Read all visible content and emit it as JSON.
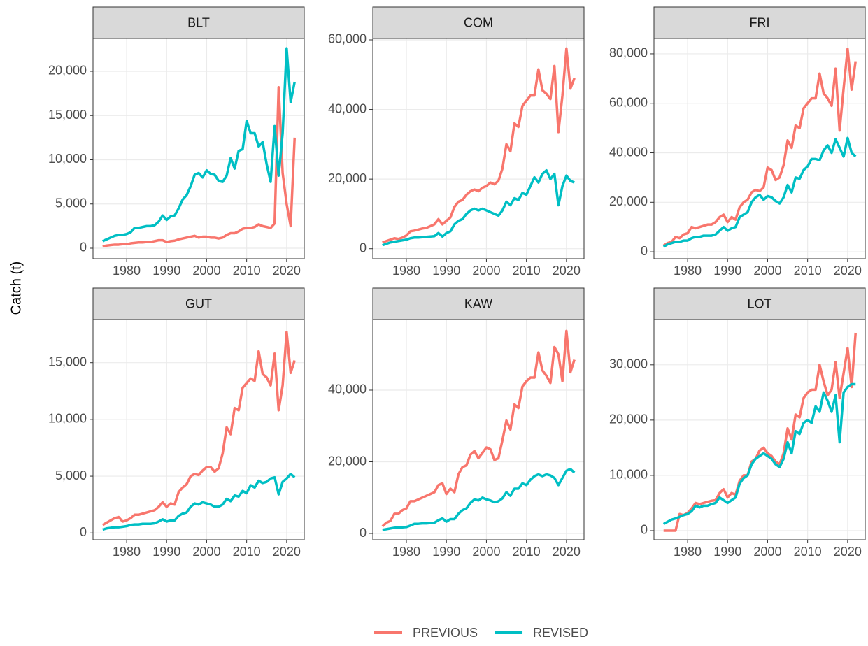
{
  "ylabel": "Catch (t)",
  "chart_data": [
    {
      "type": "line",
      "title": "BLT",
      "x": [
        1974,
        1975,
        1976,
        1977,
        1978,
        1979,
        1980,
        1981,
        1982,
        1983,
        1984,
        1985,
        1986,
        1987,
        1988,
        1989,
        1990,
        1991,
        1992,
        1993,
        1994,
        1995,
        1996,
        1997,
        1998,
        1999,
        2000,
        2001,
        2002,
        2003,
        2004,
        2005,
        2006,
        2007,
        2008,
        2009,
        2010,
        2011,
        2012,
        2013,
        2014,
        2015,
        2016,
        2017,
        2018,
        2019,
        2020,
        2021,
        2022
      ],
      "series": [
        {
          "name": "PREVIOUS",
          "color": "#F8766D",
          "values": [
            200,
            300,
            350,
            400,
            400,
            450,
            450,
            550,
            600,
            650,
            650,
            700,
            700,
            800,
            900,
            900,
            700,
            800,
            850,
            1000,
            1100,
            1200,
            1300,
            1400,
            1200,
            1300,
            1300,
            1200,
            1200,
            1100,
            1200,
            1500,
            1700,
            1700,
            1900,
            2200,
            2300,
            2300,
            2400,
            2700,
            2500,
            2400,
            2300,
            2800,
            18200,
            8500,
            5000,
            2500,
            12500
          ]
        },
        {
          "name": "REVISED",
          "color": "#00BFC4",
          "values": [
            800,
            1000,
            1200,
            1400,
            1500,
            1500,
            1600,
            1800,
            2300,
            2300,
            2400,
            2500,
            2500,
            2600,
            3000,
            3700,
            3200,
            3600,
            3700,
            4500,
            5500,
            6000,
            7000,
            8300,
            8500,
            8000,
            8800,
            8400,
            8300,
            7600,
            7500,
            8200,
            10200,
            9000,
            11000,
            11200,
            14400,
            13000,
            13000,
            11500,
            12000,
            9500,
            7500,
            13800,
            8200,
            13000,
            22600,
            16500,
            18800
          ]
        }
      ],
      "xlim": [
        1971.6,
        2024.4
      ],
      "xticks": [
        1980,
        1990,
        2000,
        2010,
        2020
      ],
      "ylim": [
        -1186,
        23715
      ],
      "yticks": [
        0,
        {
          "value": 5000,
          "label": "5,000"
        },
        {
          "value": 10000,
          "label": "10,000"
        },
        {
          "value": 15000,
          "label": "15,000"
        },
        {
          "value": 20000,
          "label": "20,000"
        }
      ],
      "grid": true
    },
    {
      "type": "line",
      "title": "COM",
      "x": [
        1974,
        1975,
        1976,
        1977,
        1978,
        1979,
        1980,
        1981,
        1982,
        1983,
        1984,
        1985,
        1986,
        1987,
        1988,
        1989,
        1990,
        1991,
        1992,
        1993,
        1994,
        1995,
        1996,
        1997,
        1998,
        1999,
        2000,
        2001,
        2002,
        2003,
        2004,
        2005,
        2006,
        2007,
        2008,
        2009,
        2010,
        2011,
        2012,
        2013,
        2014,
        2015,
        2016,
        2017,
        2018,
        2019,
        2020,
        2021,
        2022
      ],
      "series": [
        {
          "name": "PREVIOUS",
          "color": "#F8766D",
          "values": [
            1800,
            2200,
            2600,
            3000,
            2800,
            3200,
            3800,
            5000,
            5200,
            5500,
            5800,
            6000,
            6500,
            7000,
            8500,
            7000,
            8000,
            9000,
            12000,
            13500,
            14000,
            15500,
            16500,
            17000,
            16500,
            17500,
            18000,
            19000,
            18500,
            19500,
            23000,
            30000,
            28000,
            36000,
            35000,
            41000,
            42500,
            44000,
            44000,
            51500,
            45500,
            44500,
            43000,
            52500,
            33500,
            44000,
            57500,
            46000,
            49000
          ]
        },
        {
          "name": "REVISED",
          "color": "#00BFC4",
          "values": [
            1000,
            1400,
            1800,
            2000,
            2200,
            2400,
            2600,
            3000,
            3200,
            3200,
            3300,
            3400,
            3500,
            3600,
            4500,
            3500,
            4500,
            5000,
            7000,
            8000,
            8500,
            10000,
            11000,
            11500,
            11000,
            11500,
            11000,
            10500,
            10000,
            9500,
            11000,
            13500,
            12500,
            14500,
            14000,
            16000,
            15500,
            18000,
            20500,
            19000,
            21500,
            22500,
            20000,
            21500,
            12500,
            18000,
            21000,
            19500,
            19000
          ]
        }
      ],
      "xlim": [
        1971.6,
        2024.4
      ],
      "xticks": [
        1980,
        1990,
        2000,
        2010,
        2020
      ],
      "ylim": [
        -2870,
        60400
      ],
      "yticks": [
        0,
        {
          "value": 20000,
          "label": "20,000"
        },
        {
          "value": 40000,
          "label": "40,000"
        },
        {
          "value": 60000,
          "label": "60,000"
        }
      ],
      "grid": true
    },
    {
      "type": "line",
      "title": "FRI",
      "x": [
        1974,
        1975,
        1976,
        1977,
        1978,
        1979,
        1980,
        1981,
        1982,
        1983,
        1984,
        1985,
        1986,
        1987,
        1988,
        1989,
        1990,
        1991,
        1992,
        1993,
        1994,
        1995,
        1996,
        1997,
        1998,
        1999,
        2000,
        2001,
        2002,
        2003,
        2004,
        2005,
        2006,
        2007,
        2008,
        2009,
        2010,
        2011,
        2012,
        2013,
        2014,
        2015,
        2016,
        2017,
        2018,
        2019,
        2020,
        2021,
        2022
      ],
      "series": [
        {
          "name": "PREVIOUS",
          "color": "#F8766D",
          "values": [
            2500,
            3500,
            4000,
            6000,
            5500,
            7000,
            7500,
            10000,
            9500,
            10000,
            10500,
            11000,
            11000,
            12000,
            14000,
            15000,
            12000,
            14000,
            13000,
            18000,
            20000,
            21000,
            24000,
            25000,
            24500,
            26000,
            34000,
            33000,
            29000,
            30000,
            35000,
            45000,
            42000,
            51000,
            50000,
            58000,
            60000,
            62000,
            62000,
            72000,
            64000,
            62000,
            59000,
            74000,
            49000,
            66000,
            82000,
            65500,
            77000
          ]
        },
        {
          "name": "REVISED",
          "color": "#00BFC4",
          "values": [
            2000,
            3000,
            3500,
            4000,
            4000,
            4500,
            4500,
            5500,
            6000,
            6000,
            6500,
            6500,
            6500,
            7000,
            8500,
            10000,
            8500,
            9500,
            10000,
            14000,
            15000,
            16000,
            20000,
            22000,
            23000,
            21000,
            22500,
            22000,
            20500,
            19500,
            22000,
            27000,
            24000,
            30000,
            29500,
            33000,
            34500,
            37500,
            37500,
            37000,
            41000,
            43000,
            40000,
            45500,
            42000,
            38500,
            46000,
            40000,
            38500
          ]
        }
      ],
      "xlim": [
        1971.6,
        2024.4
      ],
      "xticks": [
        1980,
        1990,
        2000,
        2010,
        2020
      ],
      "ylim": [
        -2800,
        86200
      ],
      "yticks": [
        0,
        {
          "value": 20000,
          "label": "20,000"
        },
        {
          "value": 40000,
          "label": "40,000"
        },
        {
          "value": 60000,
          "label": "60,000"
        },
        {
          "value": 80000,
          "label": "80,000"
        }
      ],
      "grid": true
    },
    {
      "type": "line",
      "title": "GUT",
      "x": [
        1974,
        1975,
        1976,
        1977,
        1978,
        1979,
        1980,
        1981,
        1982,
        1983,
        1984,
        1985,
        1986,
        1987,
        1988,
        1989,
        1990,
        1991,
        1992,
        1993,
        1994,
        1995,
        1996,
        1997,
        1998,
        1999,
        2000,
        2001,
        2002,
        2003,
        2004,
        2005,
        2006,
        2007,
        2008,
        2009,
        2010,
        2011,
        2012,
        2013,
        2014,
        2015,
        2016,
        2017,
        2018,
        2019,
        2020,
        2021,
        2022
      ],
      "series": [
        {
          "name": "PREVIOUS",
          "color": "#F8766D",
          "values": [
            700,
            900,
            1100,
            1300,
            1400,
            1000,
            1100,
            1300,
            1600,
            1600,
            1700,
            1800,
            1900,
            2000,
            2300,
            2700,
            2300,
            2600,
            2500,
            3600,
            4000,
            4300,
            5000,
            5200,
            5100,
            5500,
            5800,
            5800,
            5400,
            5700,
            7000,
            9300,
            8700,
            11000,
            10800,
            12800,
            13200,
            13600,
            13400,
            16000,
            14000,
            13700,
            13000,
            15800,
            10800,
            13000,
            17700,
            14100,
            15200
          ]
        },
        {
          "name": "REVISED",
          "color": "#00BFC4",
          "values": [
            300,
            400,
            450,
            500,
            500,
            550,
            600,
            700,
            750,
            750,
            800,
            800,
            800,
            850,
            1000,
            1200,
            1000,
            1100,
            1100,
            1500,
            1700,
            1800,
            2300,
            2600,
            2500,
            2700,
            2600,
            2500,
            2300,
            2300,
            2500,
            3000,
            2800,
            3300,
            3200,
            3700,
            3500,
            4200,
            4000,
            4600,
            4400,
            4500,
            4800,
            4900,
            3400,
            4500,
            4800,
            5200,
            4900
          ]
        }
      ],
      "xlim": [
        1971.6,
        2024.4
      ],
      "xticks": [
        1980,
        1990,
        2000,
        2010,
        2020
      ],
      "ylim": [
        -600,
        18800
      ],
      "yticks": [
        0,
        {
          "value": 5000,
          "label": "5,000"
        },
        {
          "value": 10000,
          "label": "10,000"
        },
        {
          "value": 15000,
          "label": "15,000"
        }
      ],
      "grid": true
    },
    {
      "type": "line",
      "title": "KAW",
      "x": [
        1974,
        1975,
        1976,
        1977,
        1978,
        1979,
        1980,
        1981,
        1982,
        1983,
        1984,
        1985,
        1986,
        1987,
        1988,
        1989,
        1990,
        1991,
        1992,
        1993,
        1994,
        1995,
        1996,
        1997,
        1998,
        1999,
        2000,
        2001,
        2002,
        2003,
        2004,
        2005,
        2006,
        2007,
        2008,
        2009,
        2010,
        2011,
        2012,
        2013,
        2014,
        2015,
        2016,
        2017,
        2018,
        2019,
        2020,
        2021,
        2022
      ],
      "series": [
        {
          "name": "PREVIOUS",
          "color": "#F8766D",
          "values": [
            2000,
            3000,
            3500,
            5500,
            5500,
            6500,
            7000,
            9000,
            9000,
            9500,
            10000,
            10500,
            11000,
            11500,
            13500,
            14000,
            11000,
            12500,
            11500,
            16500,
            18500,
            19000,
            22000,
            23000,
            21000,
            22500,
            24000,
            23500,
            20500,
            21000,
            26000,
            31500,
            29000,
            36000,
            35000,
            41000,
            42500,
            43500,
            43500,
            50500,
            45500,
            44000,
            42000,
            52000,
            50000,
            42500,
            56500,
            45000,
            48500
          ]
        },
        {
          "name": "REVISED",
          "color": "#00BFC4",
          "values": [
            1000,
            1200,
            1400,
            1600,
            1700,
            1700,
            1800,
            2200,
            2700,
            2700,
            2800,
            2800,
            2900,
            3000,
            3700,
            4200,
            3300,
            4000,
            4000,
            5500,
            6500,
            7000,
            8500,
            9500,
            9200,
            10000,
            9500,
            9200,
            8700,
            9000,
            9800,
            11500,
            10500,
            12500,
            12500,
            14000,
            13500,
            15000,
            16000,
            16500,
            16000,
            16500,
            16200,
            15500,
            13500,
            15500,
            17500,
            18000,
            17000
          ]
        }
      ],
      "xlim": [
        1971.6,
        2024.4
      ],
      "xticks": [
        1980,
        1990,
        2000,
        2010,
        2020
      ],
      "ylim": [
        -1750,
        59700
      ],
      "yticks": [
        0,
        {
          "value": 20000,
          "label": "20,000"
        },
        {
          "value": 40000,
          "label": "40,000"
        }
      ],
      "grid": true
    },
    {
      "type": "line",
      "title": "LOT",
      "x": [
        1974,
        1975,
        1976,
        1977,
        1978,
        1979,
        1980,
        1981,
        1982,
        1983,
        1984,
        1985,
        1986,
        1987,
        1988,
        1989,
        1990,
        1991,
        1992,
        1993,
        1994,
        1995,
        1996,
        1997,
        1998,
        1999,
        2000,
        2001,
        2002,
        2003,
        2004,
        2005,
        2006,
        2007,
        2008,
        2009,
        2010,
        2011,
        2012,
        2013,
        2014,
        2015,
        2016,
        2017,
        2018,
        2019,
        2020,
        2021,
        2022
      ],
      "series": [
        {
          "name": "PREVIOUS",
          "color": "#F8766D",
          "values": [
            0,
            0,
            0,
            0,
            3000,
            2800,
            3200,
            4000,
            5000,
            4800,
            5000,
            5200,
            5400,
            5500,
            6800,
            7500,
            6000,
            6800,
            6500,
            9000,
            10000,
            10000,
            12500,
            13000,
            14500,
            15000,
            14000,
            13500,
            12500,
            12000,
            14000,
            18500,
            16500,
            21000,
            20500,
            24000,
            25000,
            25500,
            25500,
            30000,
            27000,
            24500,
            25500,
            30500,
            24000,
            28500,
            33000,
            26000,
            35800
          ]
        },
        {
          "name": "REVISED",
          "color": "#00BFC4",
          "values": [
            1200,
            1600,
            2000,
            2200,
            2500,
            2800,
            3000,
            3500,
            4500,
            4200,
            4500,
            4500,
            4800,
            5000,
            6000,
            5500,
            5000,
            5500,
            6000,
            8500,
            9500,
            10000,
            12000,
            13000,
            13500,
            14000,
            13500,
            13000,
            12000,
            11500,
            13000,
            16000,
            14000,
            18000,
            17500,
            19500,
            20000,
            19500,
            22500,
            21500,
            25000,
            23500,
            21500,
            24500,
            16000,
            25000,
            26000,
            26500,
            26500
          ]
        }
      ],
      "xlim": [
        1971.6,
        2024.4
      ],
      "xticks": [
        1980,
        1990,
        2000,
        2010,
        2020
      ],
      "ylim": [
        -1650,
        38200
      ],
      "yticks": [
        0,
        {
          "value": 10000,
          "label": "10,000"
        },
        {
          "value": 20000,
          "label": "20,000"
        },
        {
          "value": 30000,
          "label": "30,000"
        }
      ],
      "grid": true
    }
  ]
}
